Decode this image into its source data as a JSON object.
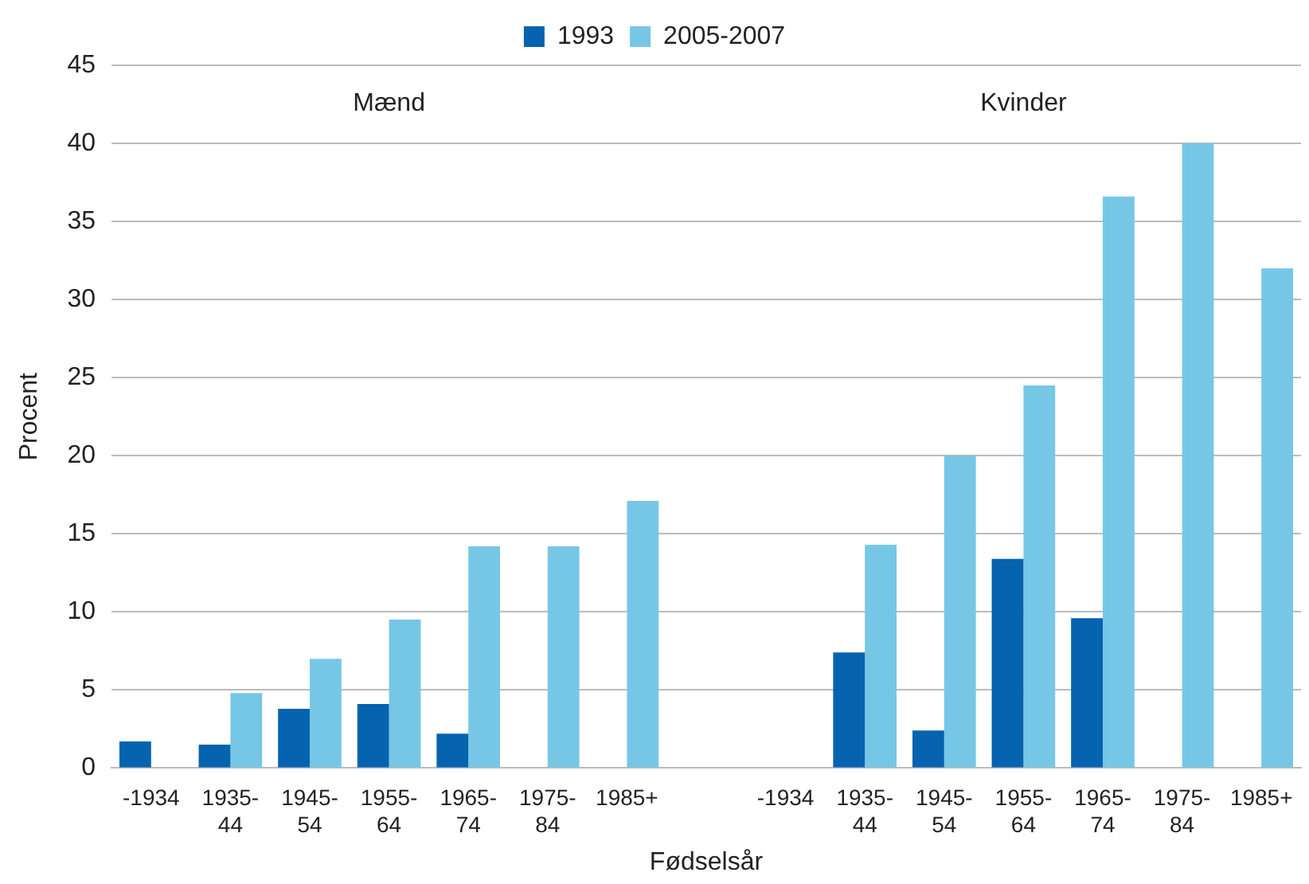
{
  "chart_data": {
    "type": "bar",
    "xlabel": "Fødselsår",
    "ylabel": "Procent",
    "categories": [
      "-1934",
      "1935-44",
      "1945-54",
      "1955-64",
      "1965-74",
      "1975-84",
      "1985+",
      null,
      "-1934",
      "1935-44",
      "1945-54",
      "1955-64",
      "1965-74",
      "1975-84",
      "1985+"
    ],
    "series": [
      {
        "name": "1993",
        "color": "#0563b0",
        "values": [
          1.7,
          1.5,
          3.8,
          4.1,
          2.2,
          null,
          null,
          null,
          null,
          7.4,
          2.4,
          13.4,
          9.6,
          null,
          null
        ]
      },
      {
        "name": "2005-2007",
        "color": "#76c7e6",
        "values": [
          null,
          4.8,
          7.0,
          9.5,
          14.2,
          14.2,
          17.1,
          null,
          null,
          14.3,
          20.0,
          24.5,
          36.6,
          40.0,
          32.0
        ]
      }
    ],
    "ylim": [
      0,
      45
    ],
    "yticks": [
      0,
      5,
      10,
      15,
      20,
      25,
      30,
      35,
      40,
      45
    ],
    "grid": "y",
    "legend": "top",
    "annotations": [
      "Mænd",
      "Kvinder"
    ]
  }
}
